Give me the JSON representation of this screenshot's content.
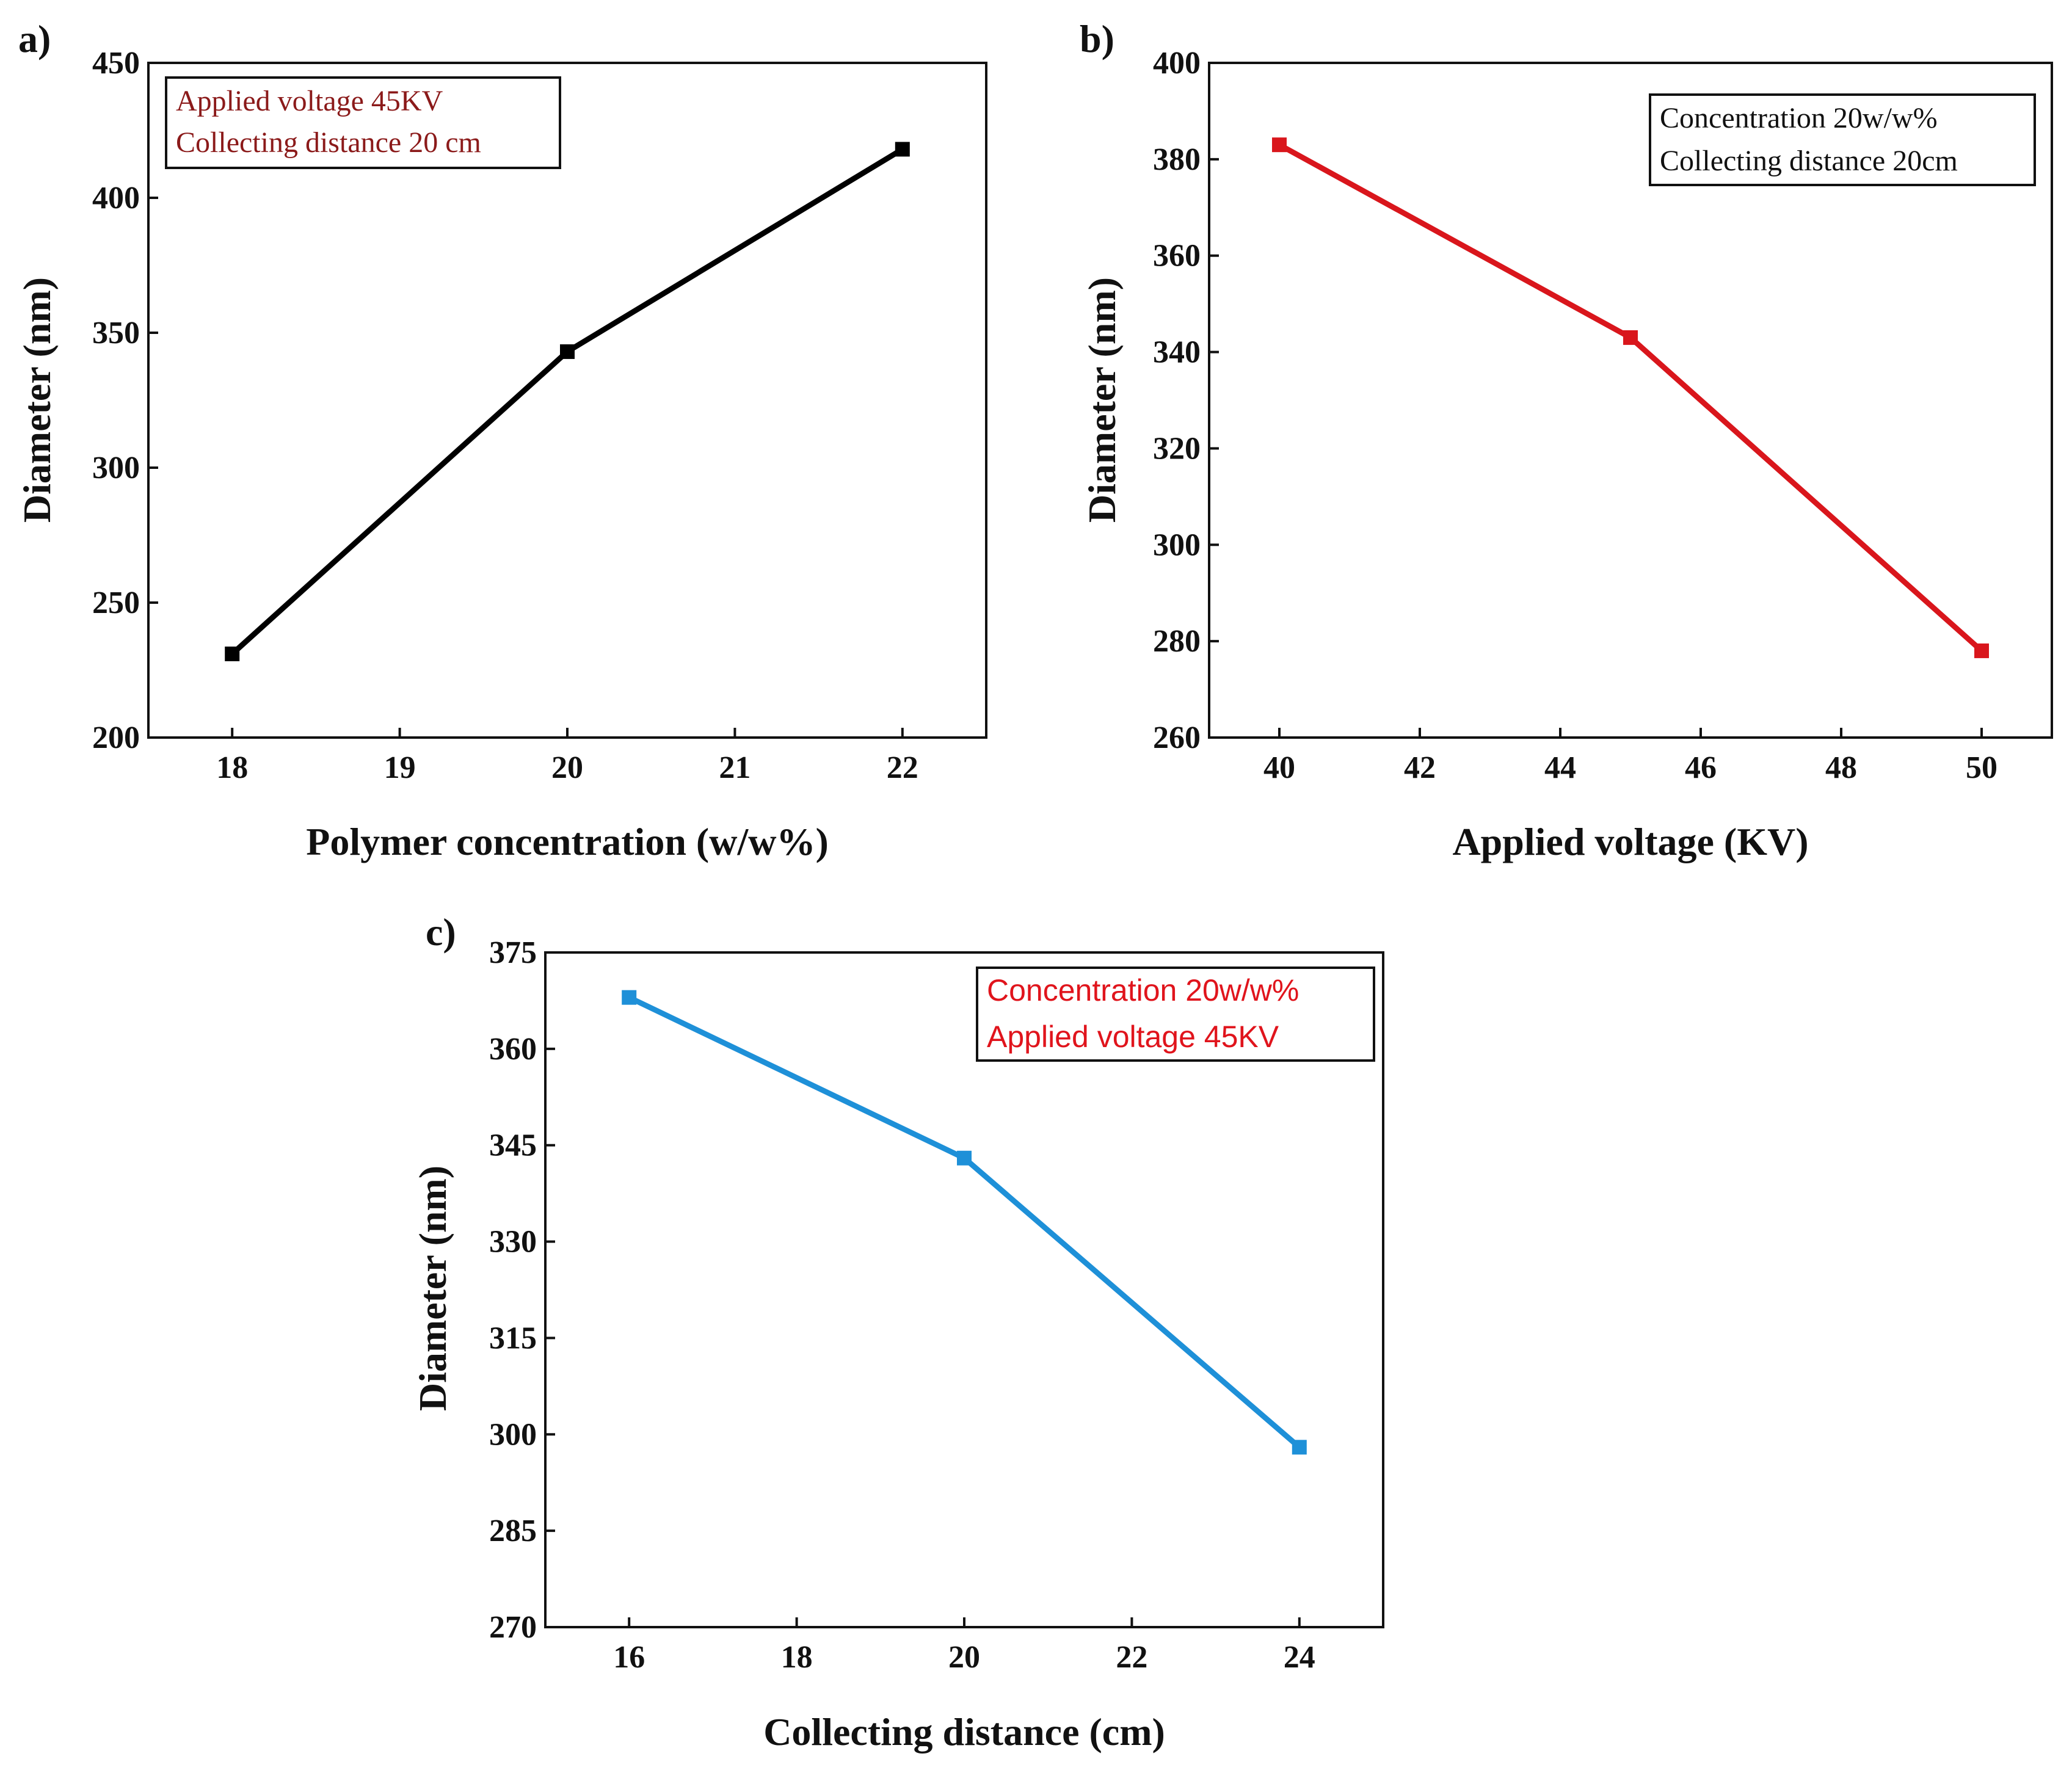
{
  "chart_data": [
    {
      "panel": "a)",
      "type": "line",
      "x": [
        18,
        20,
        22
      ],
      "values": [
        231,
        343,
        418
      ],
      "xlim": [
        17.5,
        22.5
      ],
      "ylim": [
        200,
        450
      ],
      "xticks": [
        "18",
        "19",
        "20",
        "21",
        "22"
      ],
      "yticks": [
        "200",
        "250",
        "300",
        "350",
        "400",
        "450"
      ],
      "xlabel": "Polymer concentration (w/w%)",
      "ylabel": "Diameter (nm)",
      "color": "#000000",
      "legend": [
        "Applied voltage 45KV",
        "Collecting distance 20 cm"
      ],
      "legend_color": "#8b1a1a",
      "legend_position": "top-left"
    },
    {
      "panel": "b)",
      "type": "line",
      "x": [
        40,
        45,
        50
      ],
      "values": [
        383,
        343,
        278
      ],
      "xlim": [
        39,
        51
      ],
      "ylim": [
        260,
        400
      ],
      "xticks": [
        "40",
        "42",
        "44",
        "46",
        "48",
        "50"
      ],
      "yticks": [
        "260",
        "280",
        "300",
        "320",
        "340",
        "360",
        "380",
        "400"
      ],
      "xlabel": "Applied voltage (KV)",
      "ylabel": "Diameter (nm)",
      "color": "#d9161c",
      "legend": [
        "Concentration 20w/w%",
        "Collecting distance 20cm"
      ],
      "legend_color": "#111111",
      "legend_position": "top-right"
    },
    {
      "panel": "c)",
      "type": "line",
      "x": [
        16,
        20,
        24
      ],
      "values": [
        368,
        343,
        298
      ],
      "xlim": [
        15,
        25
      ],
      "ylim": [
        270,
        375
      ],
      "xticks": [
        "16",
        "18",
        "20",
        "22",
        "24"
      ],
      "yticks": [
        "270",
        "285",
        "300",
        "315",
        "330",
        "345",
        "360",
        "375"
      ],
      "xlabel": "Collecting distance (cm)",
      "ylabel": "Diameter (nm)",
      "color": "#1e90d8",
      "legend": [
        "Concentration 20w/w%",
        "Applied voltage 45KV"
      ],
      "legend_color": "#e0141c",
      "legend_position": "top-right"
    }
  ]
}
